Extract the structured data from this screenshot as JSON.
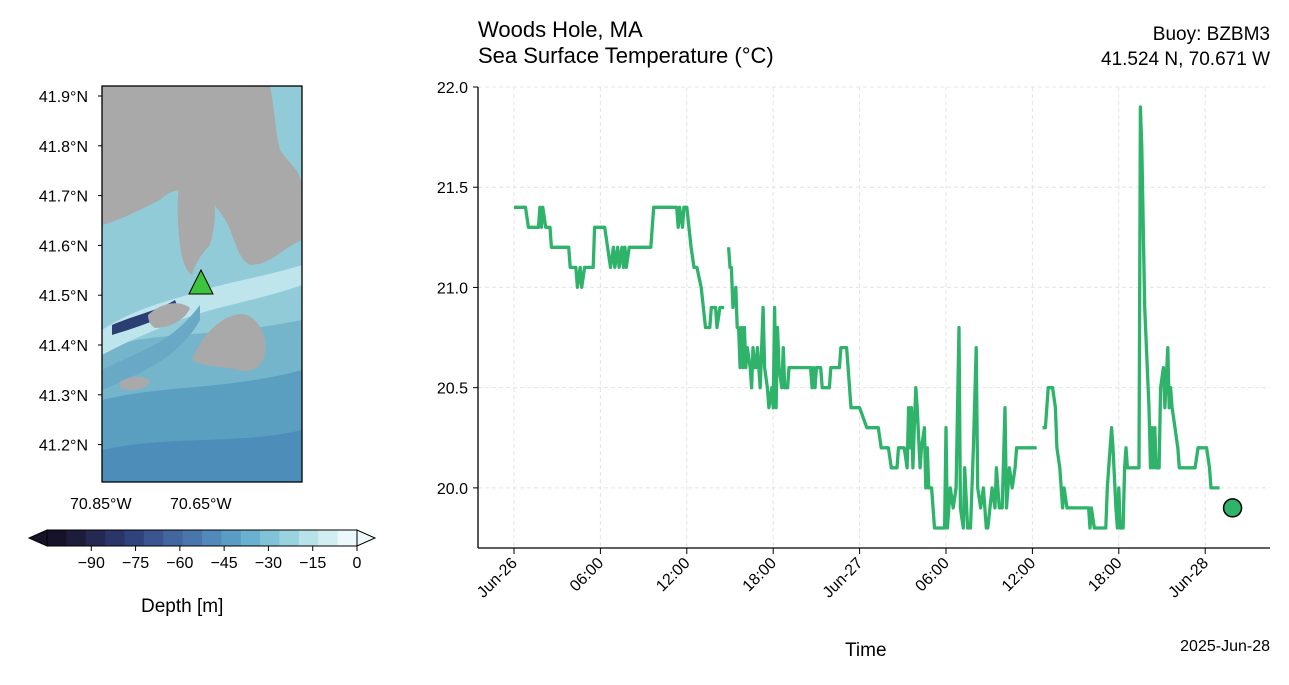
{
  "header": {
    "location": "Woods Hole, MA",
    "variable": "Sea Surface Temperature (°C)",
    "buoy": "Buoy: BZBM3",
    "coords": "41.524 N, 70.671 W"
  },
  "footer_date": "2025-Jun-28",
  "map": {
    "lat_ticks": [
      "41.9°N",
      "41.8°N",
      "41.7°N",
      "41.6°N",
      "41.5°N",
      "41.4°N",
      "41.3°N",
      "41.2°N"
    ],
    "lon_ticks": [
      "70.85°W",
      "70.65°W"
    ],
    "marker_color": "#3cc43c",
    "land_color": "#a9a9a9"
  },
  "colorbar": {
    "label": "Depth [m]",
    "ticks": [
      "−90",
      "−75",
      "−60",
      "−45",
      "−30",
      "−15",
      "0"
    ],
    "colors": [
      "#15122a",
      "#1e1c3b",
      "#252952",
      "#2a3668",
      "#30437c",
      "#3a5590",
      "#43669e",
      "#4a77ab",
      "#518aba",
      "#5b9cc5",
      "#6ab0cf",
      "#80c3d8",
      "#99d3df",
      "#b6e2e8",
      "#d3eef1",
      "#ecf9fb"
    ]
  },
  "chart_data": {
    "type": "line",
    "title": "Woods Hole, MA Sea Surface Temperature (°C)",
    "xlabel": "Time",
    "ylabel": "",
    "x_unit": "hours since 2025-06-26 00:00",
    "xlim": [
      -2.5,
      52.5
    ],
    "ylim": [
      19.7,
      22.0
    ],
    "xticks": [
      {
        "x": 0,
        "label": "Jun-26"
      },
      {
        "x": 6,
        "label": "06:00"
      },
      {
        "x": 12,
        "label": "12:00"
      },
      {
        "x": 18,
        "label": "18:00"
      },
      {
        "x": 24,
        "label": "Jun-27"
      },
      {
        "x": 30,
        "label": "06:00"
      },
      {
        "x": 36,
        "label": "12:00"
      },
      {
        "x": 42,
        "label": "18:00"
      },
      {
        "x": 48,
        "label": "Jun-28"
      }
    ],
    "yticks": [
      20.0,
      20.5,
      21.0,
      21.5,
      22.0
    ],
    "grid": true,
    "line_color": "#2fb36b",
    "series": [
      {
        "name": "",
        "points": [
          [
            0,
            21.4
          ],
          [
            0.8,
            21.4
          ],
          [
            1,
            21.3
          ],
          [
            1.7,
            21.3
          ],
          [
            1.8,
            21.4
          ],
          [
            1.9,
            21.3
          ],
          [
            2.0,
            21.4
          ],
          [
            2.2,
            21.3
          ],
          [
            2.5,
            21.3
          ],
          [
            2.6,
            21.2
          ],
          [
            3.8,
            21.2
          ],
          [
            3.9,
            21.1
          ],
          [
            4.3,
            21.1
          ],
          [
            4.4,
            21.0
          ],
          [
            4.6,
            21.1
          ],
          [
            4.7,
            21.0
          ],
          [
            4.9,
            21.1
          ],
          [
            5.5,
            21.1
          ],
          [
            5.6,
            21.3
          ],
          [
            6.3,
            21.3
          ],
          [
            6.5,
            21.2
          ],
          [
            6.7,
            21.1
          ],
          [
            6.9,
            21.2
          ],
          [
            7.0,
            21.1
          ],
          [
            7.2,
            21.2
          ],
          [
            7.3,
            21.1
          ],
          [
            7.5,
            21.2
          ],
          [
            7.6,
            21.1
          ],
          [
            7.7,
            21.2
          ],
          [
            7.8,
            21.1
          ],
          [
            8.0,
            21.2
          ],
          [
            9.5,
            21.2
          ],
          [
            9.7,
            21.4
          ],
          [
            11.3,
            21.4
          ],
          [
            11.4,
            21.3
          ],
          [
            11.5,
            21.4
          ],
          [
            11.7,
            21.3
          ],
          [
            11.8,
            21.4
          ],
          [
            12.0,
            21.4
          ],
          [
            12.3,
            21.2
          ],
          [
            12.5,
            21.1
          ],
          [
            12.7,
            21.1
          ],
          [
            13.0,
            21.0
          ],
          [
            13.3,
            20.8
          ],
          [
            13.6,
            20.8
          ],
          [
            13.7,
            20.9
          ],
          [
            14.0,
            20.9
          ],
          [
            14.1,
            20.8
          ],
          [
            14.3,
            20.9
          ],
          [
            14.6,
            20.9
          ]
        ]
      },
      {
        "name": "",
        "points": [
          [
            14.9,
            21.2
          ],
          [
            15.0,
            21.1
          ],
          [
            15.1,
            21.1
          ],
          [
            15.2,
            20.9
          ],
          [
            15.4,
            21.0
          ],
          [
            15.5,
            20.8
          ],
          [
            15.6,
            20.8
          ],
          [
            15.7,
            20.6
          ],
          [
            15.8,
            20.8
          ],
          [
            15.9,
            20.6
          ],
          [
            16.0,
            20.8
          ],
          [
            16.1,
            20.6
          ],
          [
            16.2,
            20.7
          ],
          [
            16.4,
            20.6
          ],
          [
            16.5,
            20.5
          ],
          [
            16.6,
            20.7
          ],
          [
            16.7,
            20.6
          ],
          [
            16.8,
            20.6
          ],
          [
            16.9,
            20.7
          ],
          [
            17.0,
            20.6
          ],
          [
            17.1,
            20.5
          ],
          [
            17.3,
            20.9
          ],
          [
            17.4,
            20.6
          ],
          [
            17.6,
            20.5
          ],
          [
            17.7,
            20.4
          ],
          [
            17.9,
            20.5
          ],
          [
            18.0,
            20.4
          ],
          [
            18.1,
            20.9
          ],
          [
            18.2,
            20.4
          ],
          [
            18.3,
            20.8
          ],
          [
            18.4,
            20.6
          ],
          [
            18.6,
            20.5
          ],
          [
            18.7,
            20.7
          ],
          [
            18.8,
            20.5
          ],
          [
            19.0,
            20.5
          ],
          [
            19.1,
            20.6
          ],
          [
            20.6,
            20.6
          ],
          [
            20.7,
            20.5
          ],
          [
            20.8,
            20.6
          ],
          [
            20.9,
            20.5
          ],
          [
            21.0,
            20.6
          ],
          [
            21.3,
            20.6
          ],
          [
            21.4,
            20.5
          ],
          [
            21.9,
            20.5
          ],
          [
            22.0,
            20.6
          ],
          [
            22.6,
            20.6
          ],
          [
            22.7,
            20.7
          ],
          [
            23.1,
            20.7
          ],
          [
            23.2,
            20.6
          ],
          [
            23.4,
            20.4
          ],
          [
            24.0,
            20.4
          ],
          [
            24.5,
            20.3
          ],
          [
            25.3,
            20.3
          ],
          [
            25.5,
            20.2
          ],
          [
            26.0,
            20.2
          ],
          [
            26.2,
            20.1
          ],
          [
            26.6,
            20.1
          ],
          [
            26.7,
            20.2
          ],
          [
            27.1,
            20.2
          ],
          [
            27.3,
            20.1
          ],
          [
            27.4,
            20.4
          ],
          [
            27.5,
            20.2
          ],
          [
            27.6,
            20.4
          ],
          [
            27.7,
            20.1
          ],
          [
            27.8,
            20.3
          ],
          [
            27.9,
            20.5
          ],
          [
            28.0,
            20.4
          ],
          [
            28.2,
            20.1
          ],
          [
            28.3,
            20.2
          ],
          [
            28.5,
            20.3
          ],
          [
            28.6,
            20.0
          ],
          [
            28.7,
            20.2
          ],
          [
            28.8,
            20.0
          ],
          [
            29.0,
            20.0
          ],
          [
            29.2,
            19.8
          ],
          [
            29.9,
            19.8
          ],
          [
            30.0,
            20.3
          ],
          [
            30.1,
            19.8
          ],
          [
            30.3,
            20.0
          ],
          [
            30.5,
            19.9
          ],
          [
            30.7,
            20.0
          ],
          [
            30.9,
            20.8
          ],
          [
            31.0,
            19.9
          ],
          [
            31.2,
            19.8
          ],
          [
            31.3,
            20.1
          ],
          [
            31.5,
            19.8
          ],
          [
            31.7,
            19.8
          ],
          [
            31.9,
            20.2
          ],
          [
            32.1,
            20.7
          ],
          [
            32.2,
            20.0
          ],
          [
            32.4,
            19.9
          ],
          [
            32.6,
            20.0
          ],
          [
            32.8,
            19.8
          ],
          [
            32.9,
            19.8
          ],
          [
            33.2,
            20.0
          ],
          [
            33.4,
            19.9
          ],
          [
            33.5,
            20.1
          ],
          [
            33.7,
            19.9
          ],
          [
            33.9,
            19.9
          ],
          [
            34.1,
            20.4
          ],
          [
            34.2,
            19.9
          ],
          [
            34.4,
            20.1
          ],
          [
            34.6,
            20.0
          ],
          [
            34.8,
            20.1
          ],
          [
            34.9,
            20.2
          ],
          [
            36.3,
            20.2
          ]
        ]
      },
      {
        "name": "",
        "points": [
          [
            36.7,
            20.3
          ],
          [
            36.9,
            20.3
          ],
          [
            37.0,
            20.4
          ],
          [
            37.1,
            20.5
          ],
          [
            37.4,
            20.5
          ],
          [
            37.6,
            20.4
          ],
          [
            37.7,
            20.2
          ],
          [
            37.9,
            20.1
          ],
          [
            38.0,
            20.0
          ],
          [
            38.1,
            19.9
          ],
          [
            38.2,
            20.0
          ],
          [
            38.4,
            19.9
          ],
          [
            39.9,
            19.9
          ],
          [
            40.0,
            19.8
          ],
          [
            40.1,
            19.9
          ],
          [
            40.3,
            19.8
          ],
          [
            41.1,
            19.8
          ],
          [
            41.2,
            20.0
          ],
          [
            41.3,
            20.1
          ],
          [
            41.5,
            20.3
          ],
          [
            41.6,
            20.2
          ],
          [
            41.8,
            19.9
          ],
          [
            41.9,
            19.8
          ],
          [
            42.0,
            20.0
          ],
          [
            42.1,
            19.8
          ],
          [
            42.3,
            19.8
          ],
          [
            42.4,
            20.1
          ],
          [
            42.5,
            20.2
          ],
          [
            42.6,
            20.1
          ],
          [
            43.1,
            20.1
          ],
          [
            43.4,
            20.1
          ],
          [
            43.5,
            21.9
          ],
          [
            43.6,
            21.7
          ],
          [
            43.8,
            20.9
          ],
          [
            44.1,
            20.4
          ],
          [
            44.2,
            20.1
          ],
          [
            44.3,
            20.3
          ],
          [
            44.4,
            20.1
          ],
          [
            44.5,
            20.3
          ],
          [
            44.6,
            20.1
          ],
          [
            44.8,
            20.1
          ],
          [
            44.9,
            20.5
          ],
          [
            45.1,
            20.6
          ],
          [
            45.2,
            20.4
          ],
          [
            45.4,
            20.7
          ],
          [
            45.5,
            20.4
          ],
          [
            45.6,
            20.5
          ],
          [
            45.7,
            20.4
          ],
          [
            45.9,
            20.3
          ],
          [
            46.1,
            20.2
          ],
          [
            46.2,
            20.1
          ],
          [
            47.3,
            20.1
          ],
          [
            47.5,
            20.2
          ],
          [
            48.1,
            20.2
          ],
          [
            48.3,
            20.1
          ],
          [
            48.4,
            20.0
          ],
          [
            49.0,
            20.0
          ]
        ]
      }
    ],
    "last_point": [
      49.9,
      19.9
    ]
  }
}
